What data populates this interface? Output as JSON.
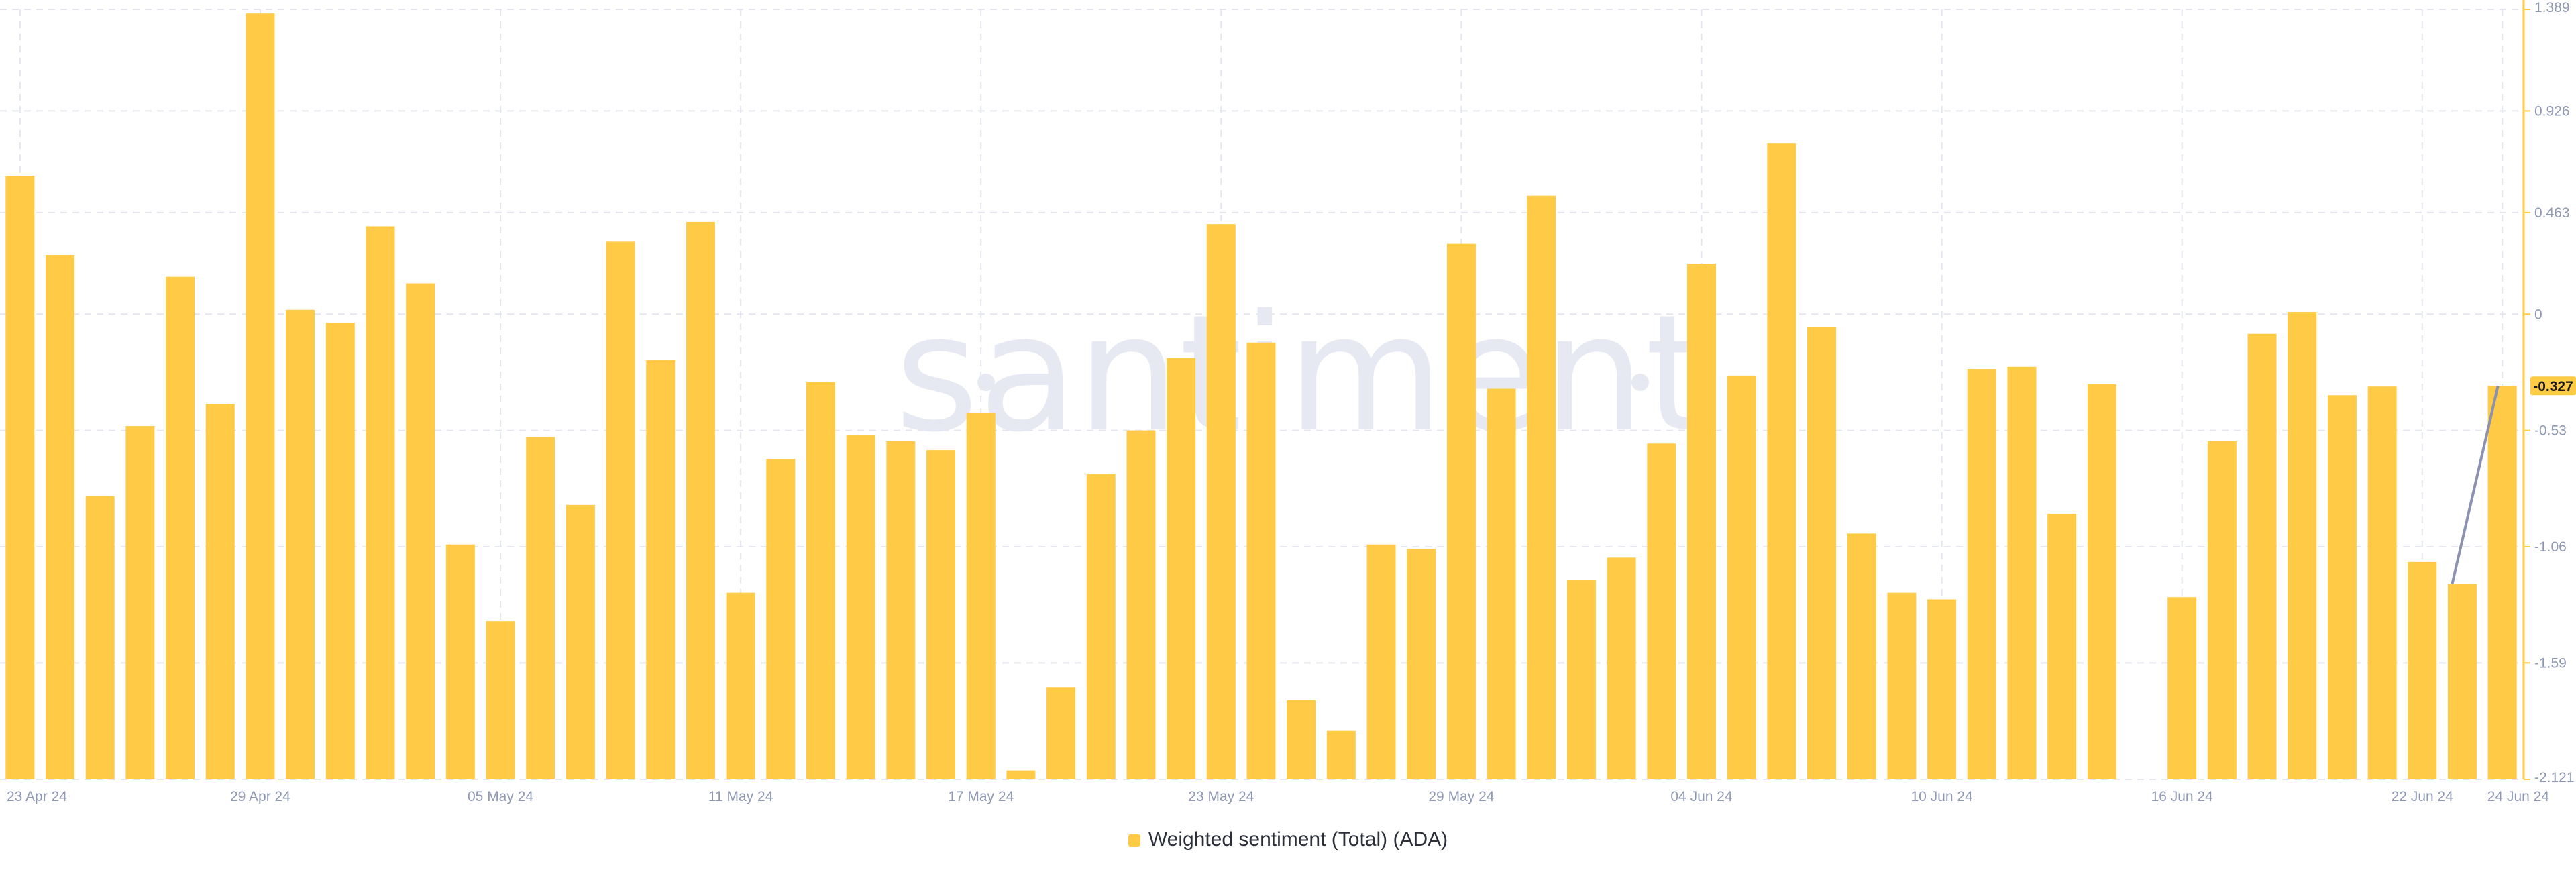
{
  "chart_data": {
    "type": "bar",
    "series": [
      {
        "name": "Weighted sentiment (Total) (ADA)",
        "color": "#ffcb47",
        "values": [
          0.63,
          0.27,
          -0.83,
          -0.51,
          0.17,
          -0.41,
          1.37,
          0.02,
          -0.04,
          0.4,
          0.14,
          -1.05,
          -1.4,
          -0.56,
          -0.87,
          0.33,
          -0.21,
          0.42,
          -1.27,
          -0.66,
          -0.31,
          -0.55,
          -0.58,
          -0.62,
          -0.45,
          -2.08,
          -1.7,
          -0.73,
          -0.53,
          -0.2,
          0.41,
          -0.13,
          -1.76,
          -1.9,
          -1.05,
          -1.07,
          0.32,
          -0.34,
          0.54,
          -1.21,
          -1.11,
          -0.59,
          0.23,
          -0.28,
          0.78,
          -0.06,
          -1.0,
          -1.27,
          -1.3,
          -0.25,
          -0.24,
          -0.91,
          -0.32,
          null,
          -1.29,
          -0.58,
          -0.09,
          0.01,
          -0.37,
          -0.33,
          -1.13,
          -1.23,
          -0.327
        ]
      }
    ],
    "x_tick_labels": [
      "23 Apr 24",
      "29 Apr 24",
      "05 May 24",
      "11 May 24",
      "17 May 24",
      "23 May 24",
      "29 May 24",
      "04 Jun 24",
      "10 Jun 24",
      "16 Jun 24",
      "22 Jun 24",
      "24 Jun 24"
    ],
    "x_tick_index": [
      0,
      6,
      12,
      18,
      24,
      30,
      36,
      42,
      48,
      54,
      60,
      62
    ],
    "y_ticks": [
      1.389,
      0.926,
      0.463,
      0,
      -0.53,
      -1.06,
      -1.59,
      -2.121
    ],
    "y_tick_labels": [
      "1.389",
      "0.926",
      "0.463",
      "0",
      "-0.53",
      "-1.06",
      "-1.59",
      "-2.121"
    ],
    "ylim": [
      -2.121,
      1.389
    ],
    "y_axis_position": "right",
    "current_value_label": "-0.327",
    "grid": true,
    "legend_position": "bottom-center",
    "watermark": "santiment",
    "title": "",
    "xlabel": "",
    "ylabel": ""
  },
  "colors": {
    "bar": "#ffcb47",
    "axis": "#ffcb47",
    "grid": "#e3e6ee",
    "trend_line": "#8b91ae",
    "tick_text": "#8f98b3"
  }
}
